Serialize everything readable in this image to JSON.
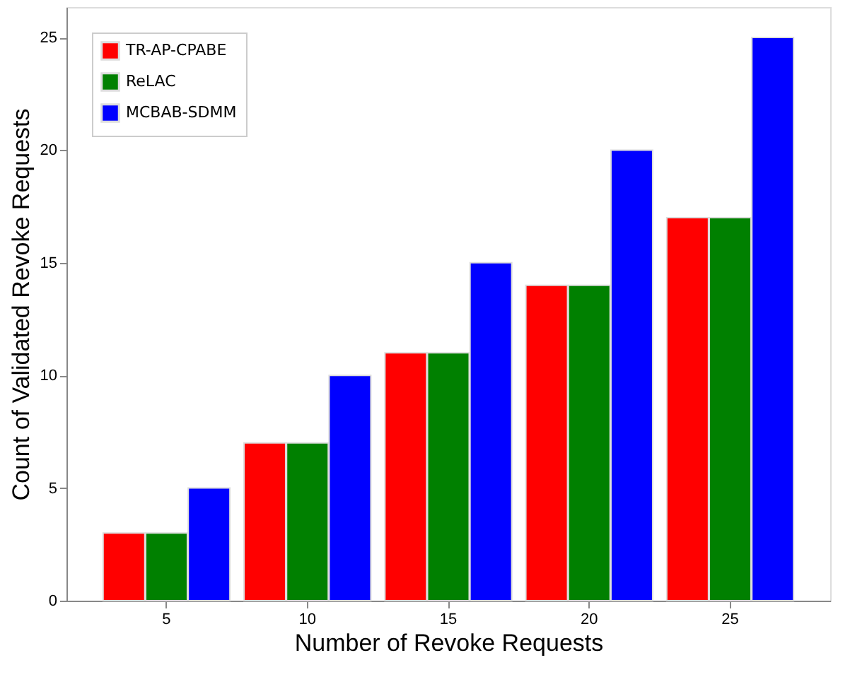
{
  "chart_data": {
    "type": "bar",
    "xlabel": "Number of Revoke Requests",
    "ylabel": "Count of Validated Revoke Requests",
    "categories": [
      "5",
      "10",
      "15",
      "20",
      "25"
    ],
    "series": [
      {
        "name": "TR-AP-CPABE",
        "color": "#ff0000",
        "values": [
          3,
          7,
          11,
          14,
          17
        ]
      },
      {
        "name": "ReLAC",
        "color": "#008000",
        "values": [
          3,
          7,
          11,
          14,
          17
        ]
      },
      {
        "name": "MCBAB-SDMM",
        "color": "#0000ff",
        "values": [
          5,
          10,
          15,
          20,
          25
        ]
      }
    ],
    "ylim": [
      0,
      26.35
    ],
    "yticks": [
      0,
      5,
      10,
      15,
      20,
      25
    ],
    "grid": false,
    "legend": "top left"
  }
}
